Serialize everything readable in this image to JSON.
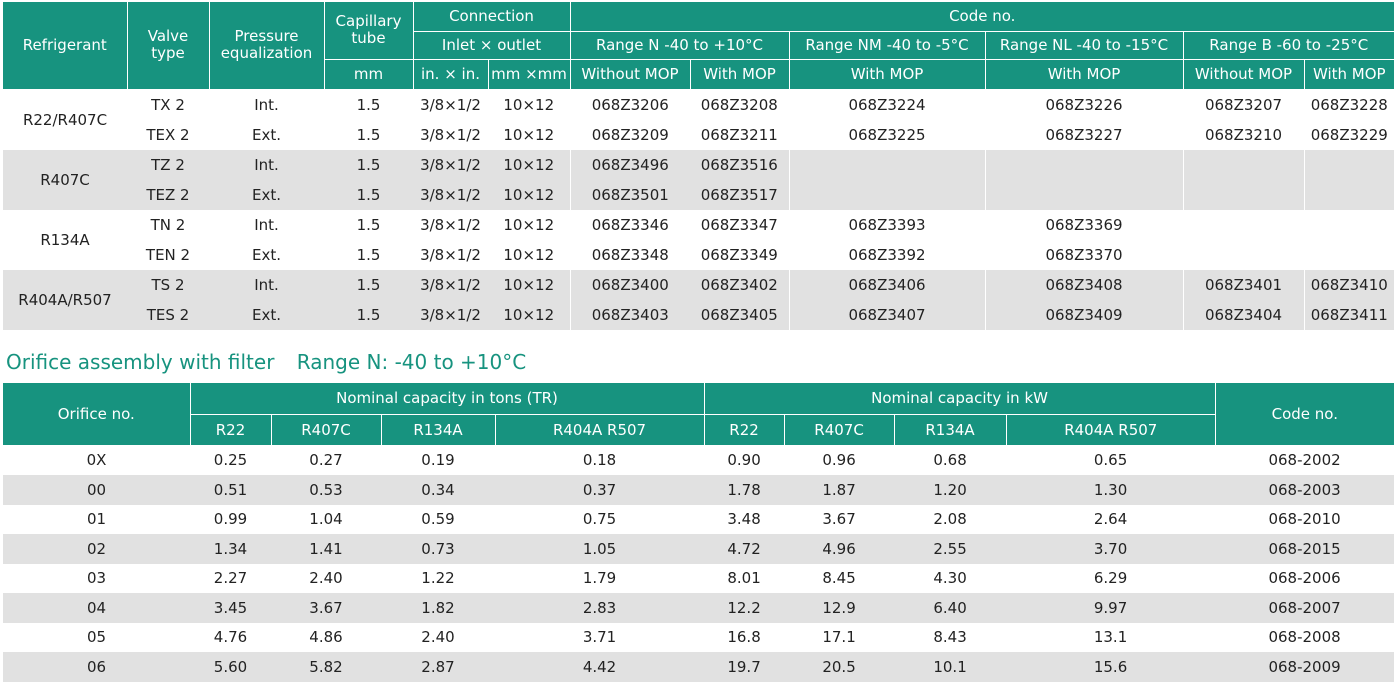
{
  "valve_table": {
    "headers": {
      "refrigerant": "Refrigerant",
      "valve_type": "Valve type",
      "pressure_eq": "Pressure equalization",
      "capillary": "Capillary tube",
      "capillary_unit": "mm",
      "connection": "Connection",
      "inlet_outlet": "Inlet × outlet",
      "conn_in": "in. × in.",
      "conn_mm": "mm ×mm",
      "code_no": "Code no.",
      "range_n": "Range N -40 to +10°C",
      "range_nm": "Range NM -40 to -5°C",
      "range_nl": "Range NL -40 to -15°C",
      "range_b": "Range B -60 to -25°C",
      "without_mop": "Without MOP",
      "with_mop": "With MOP"
    },
    "groups": [
      {
        "refrigerant": "R22/R407C",
        "rows": [
          {
            "type": "TX 2",
            "eq": "Int.",
            "cap": "1.5",
            "inch": "3/8×1/2",
            "mm": "10×12",
            "n_wo": "068Z3206",
            "n_w": "068Z3208",
            "nm": "068Z3224",
            "nl": "068Z3226",
            "b_wo": "068Z3207",
            "b_w": "068Z3228"
          },
          {
            "type": "TEX 2",
            "eq": "Ext.",
            "cap": "1.5",
            "inch": "3/8×1/2",
            "mm": "10×12",
            "n_wo": "068Z3209",
            "n_w": "068Z3211",
            "nm": "068Z3225",
            "nl": "068Z3227",
            "b_wo": "068Z3210",
            "b_w": "068Z3229"
          }
        ]
      },
      {
        "refrigerant": "R407C",
        "rows": [
          {
            "type": "TZ 2",
            "eq": "Int.",
            "cap": "1.5",
            "inch": "3/8×1/2",
            "mm": "10×12",
            "n_wo": "068Z3496",
            "n_w": "068Z3516",
            "nm": "",
            "nl": "",
            "b_wo": "",
            "b_w": ""
          },
          {
            "type": "TEZ 2",
            "eq": "Ext.",
            "cap": "1.5",
            "inch": "3/8×1/2",
            "mm": "10×12",
            "n_wo": "068Z3501",
            "n_w": "068Z3517",
            "nm": "",
            "nl": "",
            "b_wo": "",
            "b_w": ""
          }
        ]
      },
      {
        "refrigerant": "R134A",
        "rows": [
          {
            "type": "TN 2",
            "eq": "Int.",
            "cap": "1.5",
            "inch": "3/8×1/2",
            "mm": "10×12",
            "n_wo": "068Z3346",
            "n_w": "068Z3347",
            "nm": "068Z3393",
            "nl": "068Z3369",
            "b_wo": "",
            "b_w": ""
          },
          {
            "type": "TEN 2",
            "eq": "Ext.",
            "cap": "1.5",
            "inch": "3/8×1/2",
            "mm": "10×12",
            "n_wo": "068Z3348",
            "n_w": "068Z3349",
            "nm": "068Z3392",
            "nl": "068Z3370",
            "b_wo": "",
            "b_w": ""
          }
        ]
      },
      {
        "refrigerant": "R404A/R507",
        "rows": [
          {
            "type": "TS 2",
            "eq": "Int.",
            "cap": "1.5",
            "inch": "3/8×1/2",
            "mm": "10×12",
            "n_wo": "068Z3400",
            "n_w": "068Z3402",
            "nm": "068Z3406",
            "nl": "068Z3408",
            "b_wo": "068Z3401",
            "b_w": "068Z3410"
          },
          {
            "type": "TES 2",
            "eq": "Ext.",
            "cap": "1.5",
            "inch": "3/8×1/2",
            "mm": "10×12",
            "n_wo": "068Z3403",
            "n_w": "068Z3405",
            "nm": "068Z3407",
            "nl": "068Z3409",
            "b_wo": "068Z3404",
            "b_w": "068Z3411"
          }
        ]
      }
    ]
  },
  "orifice_heading": {
    "title": "Orifice assembly with filter",
    "range": "Range N: -40 to +10°C"
  },
  "orifice_table": {
    "headers": {
      "orifice_no": "Orifice no.",
      "tons": "Nominal capacity in tons (TR)",
      "kw": "Nominal capacity in kW",
      "code_no": "Code no.",
      "r22": "R22",
      "r407c": "R407C",
      "r134a": "R134A",
      "r404a": "R404A R507"
    },
    "rows": [
      {
        "no": "0X",
        "t_r22": "0.25",
        "t_r407c": "0.27",
        "t_r134a": "0.19",
        "t_r404a": "0.18",
        "k_r22": "0.90",
        "k_r407c": "0.96",
        "k_r134a": "0.68",
        "k_r404a": "0.65",
        "code": "068-2002"
      },
      {
        "no": "00",
        "t_r22": "0.51",
        "t_r407c": "0.53",
        "t_r134a": "0.34",
        "t_r404a": "0.37",
        "k_r22": "1.78",
        "k_r407c": "1.87",
        "k_r134a": "1.20",
        "k_r404a": "1.30",
        "code": "068-2003"
      },
      {
        "no": "01",
        "t_r22": "0.99",
        "t_r407c": "1.04",
        "t_r134a": "0.59",
        "t_r404a": "0.75",
        "k_r22": "3.48",
        "k_r407c": "3.67",
        "k_r134a": "2.08",
        "k_r404a": "2.64",
        "code": "068-2010"
      },
      {
        "no": "02",
        "t_r22": "1.34",
        "t_r407c": "1.41",
        "t_r134a": "0.73",
        "t_r404a": "1.05",
        "k_r22": "4.72",
        "k_r407c": "4.96",
        "k_r134a": "2.55",
        "k_r404a": "3.70",
        "code": "068-2015"
      },
      {
        "no": "03",
        "t_r22": "2.27",
        "t_r407c": "2.40",
        "t_r134a": "1.22",
        "t_r404a": "1.79",
        "k_r22": "8.01",
        "k_r407c": "8.45",
        "k_r134a": "4.30",
        "k_r404a": "6.29",
        "code": "068-2006"
      },
      {
        "no": "04",
        "t_r22": "3.45",
        "t_r407c": "3.67",
        "t_r134a": "1.82",
        "t_r404a": "2.83",
        "k_r22": "12.2",
        "k_r407c": "12.9",
        "k_r134a": "6.40",
        "k_r404a": "9.97",
        "code": "068-2007"
      },
      {
        "no": "05",
        "t_r22": "4.76",
        "t_r407c": "4.86",
        "t_r134a": "2.40",
        "t_r404a": "3.71",
        "k_r22": "16.8",
        "k_r407c": "17.1",
        "k_r134a": "8.43",
        "k_r404a": "13.1",
        "code": "068-2008"
      },
      {
        "no": "06",
        "t_r22": "5.60",
        "t_r407c": "5.82",
        "t_r134a": "2.87",
        "t_r404a": "4.42",
        "k_r22": "19.7",
        "k_r407c": "20.5",
        "k_r134a": "10.1",
        "k_r404a": "15.6",
        "code": "068-2009"
      }
    ]
  }
}
